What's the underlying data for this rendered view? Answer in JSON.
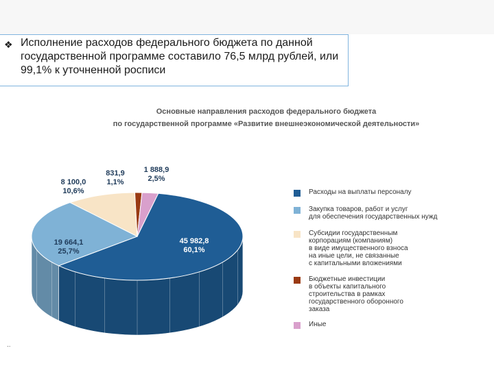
{
  "slide": {
    "bullet_icon": "diamond-bullet-icon",
    "body_text": "Исполнение расходов федерального бюджета по данной государственной программе составило 76,5 млрд рублей, или 99,1% к уточненной росписи",
    "footer_marker": "..",
    "border_color": "#7fb3de"
  },
  "chart_title": {
    "line1": "Основные направления расходов федерального бюджета",
    "line2": "по государственной программе «Развитие внешнеэкономической деятельности»"
  },
  "chart_data": {
    "type": "pie",
    "title": "Основные направления расходов федерального бюджета по государственной программе «Развитие внешнеэкономической деятельности»",
    "three_d": true,
    "legend_position": "right",
    "slices": [
      {
        "label": "Расходы на выплаты персоналу",
        "value": 45982.8,
        "value_text": "45 982,8",
        "percent_text": "60,1%",
        "color": "#1f5d95",
        "label_color": "#ffffff"
      },
      {
        "label": "Закупка товаров, работ и услуг\nдля обеспечения государственных нужд",
        "value": 19664.1,
        "value_text": "19 664,1",
        "percent_text": "25,7%",
        "color": "#7fb2d6",
        "label_color": "#1f3b5a"
      },
      {
        "label": "Субсидии государственным\nкорпорациям (компаниям)\nв виде имущественного взноса\nна иные цели, не связанные\nс капитальными вложениями",
        "value": 8100.0,
        "value_text": "8 100,0",
        "percent_text": "10,6%",
        "color": "#f8e4c6",
        "label_color": "#1f3b5a"
      },
      {
        "label": "Бюджетные инвестиции\nв объекты капитального\nстроительства в рамках\nгосударственного оборонного\nзаказа",
        "value": 831.9,
        "value_text": "831,9",
        "percent_text": "1,1%",
        "color": "#9a3a13",
        "label_color": "#1f3b5a"
      },
      {
        "label": "Иные",
        "value": 1888.9,
        "value_text": "1 888,9",
        "percent_text": "2,5%",
        "color": "#d9a0cc",
        "label_color": "#1f3b5a"
      }
    ]
  }
}
